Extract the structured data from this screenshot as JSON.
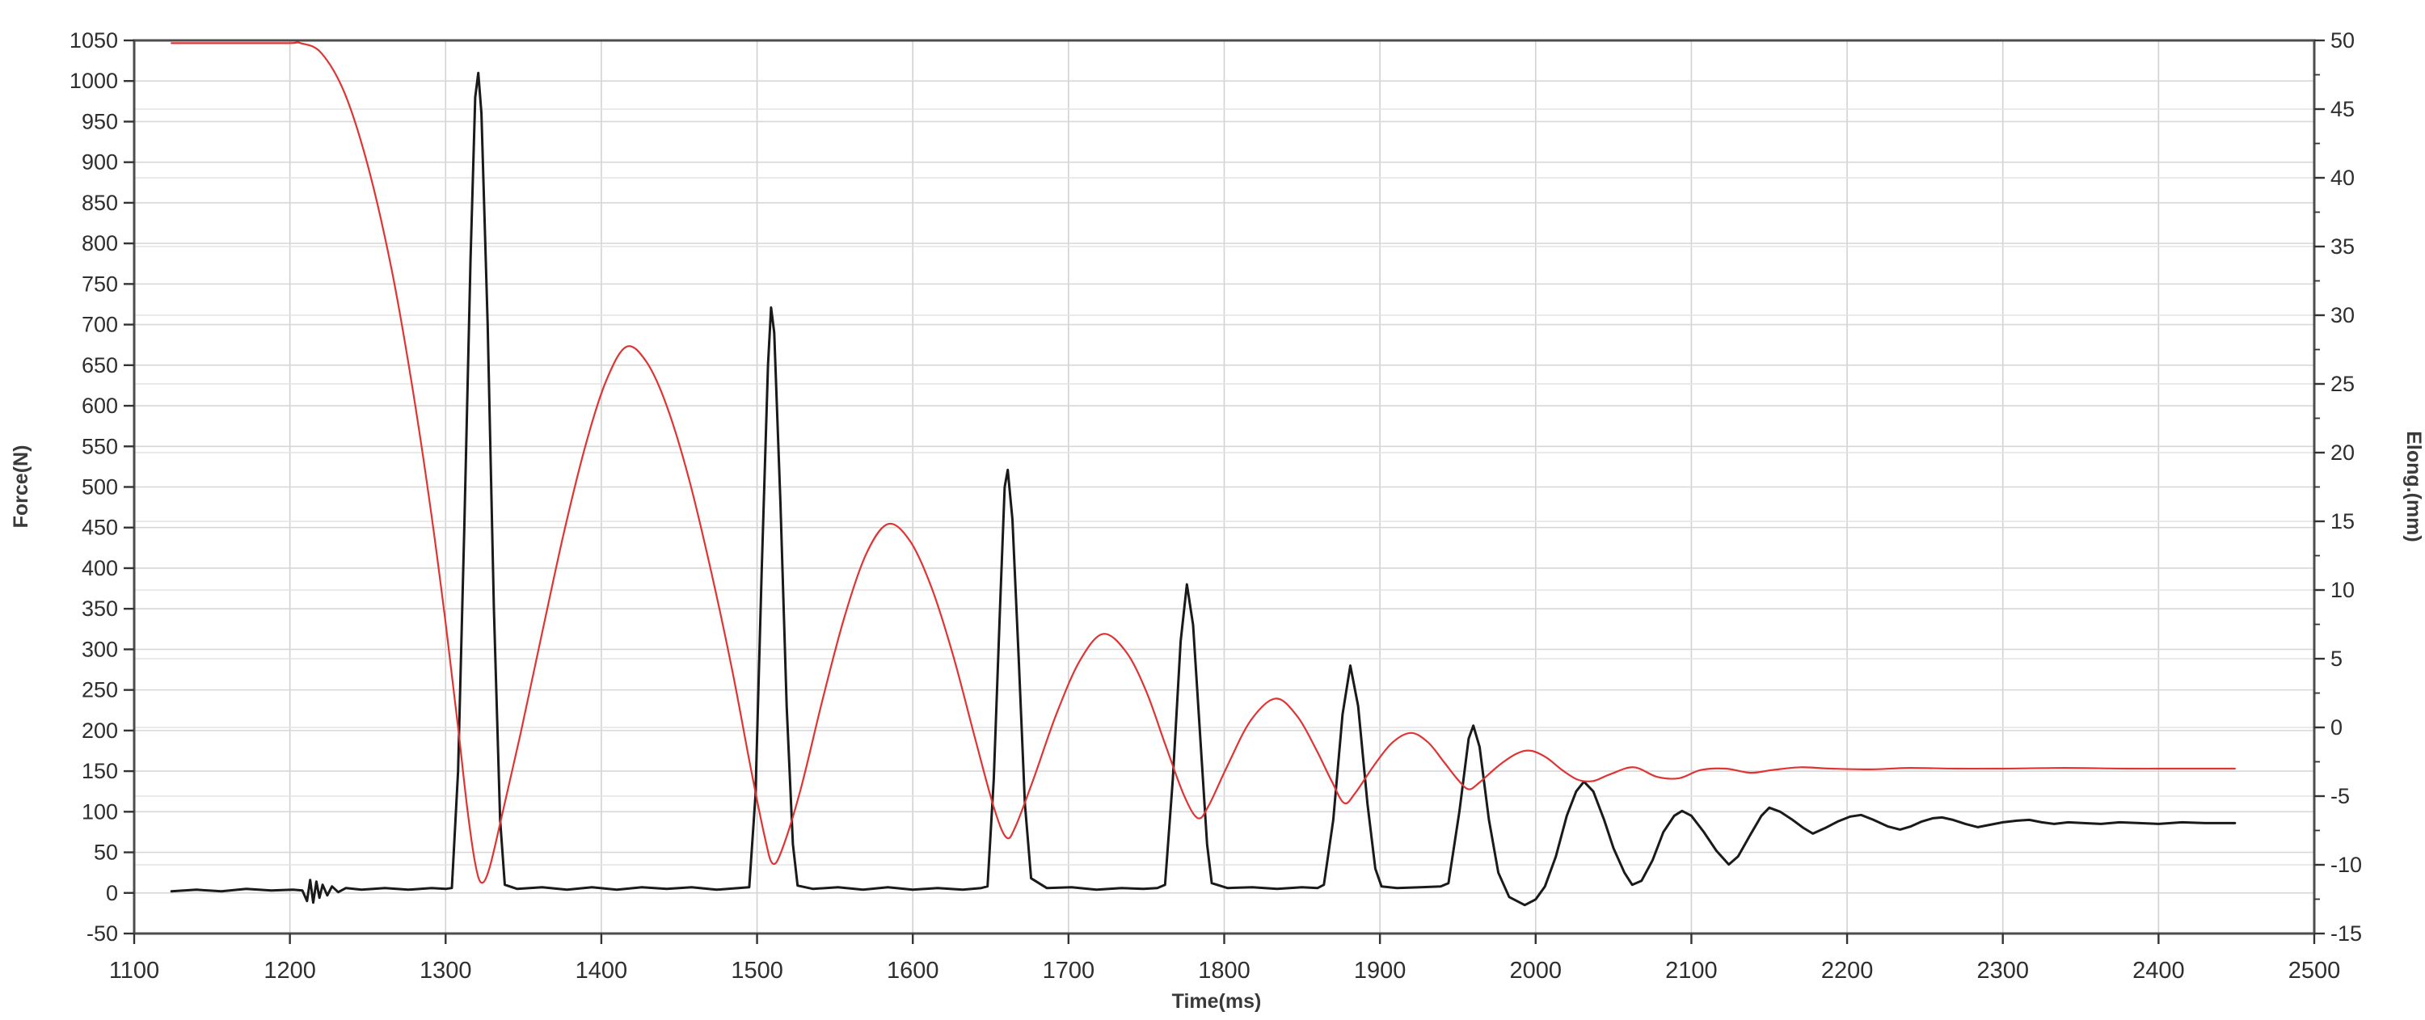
{
  "chart_data": {
    "type": "line",
    "title": "",
    "x_axis": {
      "label": "Time(ms)",
      "min": 1100,
      "max": 2500,
      "tick_step": 100
    },
    "y_left_axis": {
      "label": "Force(N)",
      "min": -50,
      "max": 1050,
      "tick_step": 50
    },
    "y_right_axis": {
      "label": "Elong.(mm)",
      "min": -15,
      "max": 50,
      "tick_step": 5
    },
    "grid": "on",
    "legend_position": "none",
    "style": {
      "background": "#ffffff",
      "frame_color": "#4d4d4d",
      "grid_color_left": "#d7d7d7",
      "grid_color_right": "#e3e3e3",
      "grid_color_vertical": "#d2d2d2",
      "tick_color": "#333333",
      "label_color": "#2e2e2e"
    },
    "series": [
      {
        "name": "Force",
        "axis": "left",
        "color": "#1a1a1a",
        "width": 3,
        "interpolation": "linear",
        "points": [
          [
            1124,
            2
          ],
          [
            1140,
            4
          ],
          [
            1156,
            2
          ],
          [
            1172,
            5
          ],
          [
            1188,
            3
          ],
          [
            1202,
            4
          ],
          [
            1208,
            3
          ],
          [
            1211,
            -10
          ],
          [
            1213,
            16
          ],
          [
            1215,
            -12
          ],
          [
            1217,
            14
          ],
          [
            1219,
            -6
          ],
          [
            1221,
            10
          ],
          [
            1224,
            -3
          ],
          [
            1227,
            8
          ],
          [
            1231,
            1
          ],
          [
            1236,
            6
          ],
          [
            1246,
            4
          ],
          [
            1261,
            6
          ],
          [
            1276,
            4
          ],
          [
            1291,
            6
          ],
          [
            1300,
            5
          ],
          [
            1304,
            6
          ],
          [
            1308,
            150
          ],
          [
            1312,
            450
          ],
          [
            1316,
            780
          ],
          [
            1319,
            980
          ],
          [
            1321,
            1010
          ],
          [
            1323,
            960
          ],
          [
            1327,
            700
          ],
          [
            1331,
            350
          ],
          [
            1335,
            90
          ],
          [
            1338,
            10
          ],
          [
            1346,
            5
          ],
          [
            1362,
            7
          ],
          [
            1378,
            4
          ],
          [
            1394,
            7
          ],
          [
            1410,
            4
          ],
          [
            1426,
            7
          ],
          [
            1442,
            5
          ],
          [
            1458,
            7
          ],
          [
            1474,
            4
          ],
          [
            1488,
            6
          ],
          [
            1495,
            7
          ],
          [
            1499,
            120
          ],
          [
            1503,
            400
          ],
          [
            1507,
            650
          ],
          [
            1509,
            721
          ],
          [
            1511,
            690
          ],
          [
            1515,
            480
          ],
          [
            1519,
            230
          ],
          [
            1523,
            60
          ],
          [
            1526,
            9
          ],
          [
            1536,
            5
          ],
          [
            1552,
            7
          ],
          [
            1568,
            4
          ],
          [
            1584,
            7
          ],
          [
            1600,
            4
          ],
          [
            1616,
            6
          ],
          [
            1632,
            4
          ],
          [
            1644,
            6
          ],
          [
            1648,
            8
          ],
          [
            1652,
            140
          ],
          [
            1656,
            350
          ],
          [
            1659,
            500
          ],
          [
            1661,
            521
          ],
          [
            1664,
            460
          ],
          [
            1668,
            290
          ],
          [
            1672,
            110
          ],
          [
            1676,
            18
          ],
          [
            1686,
            6
          ],
          [
            1702,
            7
          ],
          [
            1718,
            4
          ],
          [
            1734,
            6
          ],
          [
            1748,
            5
          ],
          [
            1757,
            6
          ],
          [
            1762,
            10
          ],
          [
            1767,
            140
          ],
          [
            1772,
            310
          ],
          [
            1776,
            380
          ],
          [
            1780,
            330
          ],
          [
            1785,
            180
          ],
          [
            1789,
            60
          ],
          [
            1792,
            12
          ],
          [
            1802,
            6
          ],
          [
            1818,
            7
          ],
          [
            1834,
            5
          ],
          [
            1850,
            7
          ],
          [
            1860,
            6
          ],
          [
            1864,
            10
          ],
          [
            1870,
            90
          ],
          [
            1876,
            220
          ],
          [
            1881,
            280
          ],
          [
            1886,
            230
          ],
          [
            1892,
            110
          ],
          [
            1897,
            30
          ],
          [
            1901,
            8
          ],
          [
            1911,
            6
          ],
          [
            1926,
            7
          ],
          [
            1939,
            8
          ],
          [
            1944,
            12
          ],
          [
            1951,
            100
          ],
          [
            1957,
            190
          ],
          [
            1960,
            206
          ],
          [
            1964,
            180
          ],
          [
            1970,
            90
          ],
          [
            1976,
            25
          ],
          [
            1983,
            -5
          ],
          [
            1993,
            -15
          ],
          [
            2000,
            -8
          ],
          [
            2006,
            8
          ],
          [
            2013,
            45
          ],
          [
            2020,
            95
          ],
          [
            2026,
            125
          ],
          [
            2031,
            137
          ],
          [
            2037,
            125
          ],
          [
            2044,
            90
          ],
          [
            2050,
            55
          ],
          [
            2057,
            25
          ],
          [
            2062,
            10
          ],
          [
            2068,
            15
          ],
          [
            2075,
            40
          ],
          [
            2082,
            75
          ],
          [
            2089,
            95
          ],
          [
            2094,
            101
          ],
          [
            2100,
            95
          ],
          [
            2108,
            75
          ],
          [
            2116,
            52
          ],
          [
            2124,
            35
          ],
          [
            2130,
            45
          ],
          [
            2138,
            72
          ],
          [
            2145,
            95
          ],
          [
            2150,
            105
          ],
          [
            2157,
            100
          ],
          [
            2165,
            90
          ],
          [
            2172,
            80
          ],
          [
            2178,
            73
          ],
          [
            2186,
            80
          ],
          [
            2194,
            88
          ],
          [
            2202,
            94
          ],
          [
            2209,
            96
          ],
          [
            2217,
            90
          ],
          [
            2226,
            82
          ],
          [
            2234,
            78
          ],
          [
            2241,
            82
          ],
          [
            2248,
            88
          ],
          [
            2255,
            92
          ],
          [
            2261,
            93
          ],
          [
            2268,
            90
          ],
          [
            2276,
            85
          ],
          [
            2284,
            81
          ],
          [
            2292,
            84
          ],
          [
            2300,
            87
          ],
          [
            2309,
            89
          ],
          [
            2317,
            90
          ],
          [
            2325,
            87
          ],
          [
            2333,
            85
          ],
          [
            2342,
            87
          ],
          [
            2352,
            86
          ],
          [
            2363,
            85
          ],
          [
            2375,
            87
          ],
          [
            2388,
            86
          ],
          [
            2400,
            85
          ],
          [
            2415,
            87
          ],
          [
            2430,
            86
          ],
          [
            2449,
            86
          ]
        ]
      },
      {
        "name": "Elongation",
        "axis": "right",
        "color": "#e03434",
        "width": 2.2,
        "interpolation": "smooth",
        "points": [
          [
            1124,
            49.8
          ],
          [
            1150,
            49.8
          ],
          [
            1175,
            49.8
          ],
          [
            1200,
            49.8
          ],
          [
            1207,
            49.8
          ],
          [
            1220,
            49.1
          ],
          [
            1235,
            46.2
          ],
          [
            1250,
            40.9
          ],
          [
            1265,
            33.5
          ],
          [
            1278,
            25.2
          ],
          [
            1290,
            16.2
          ],
          [
            1300,
            7.6
          ],
          [
            1308,
            0.0
          ],
          [
            1314,
            -6.0
          ],
          [
            1319,
            -9.9
          ],
          [
            1323,
            -11.3
          ],
          [
            1328,
            -10.3
          ],
          [
            1336,
            -6.5
          ],
          [
            1348,
            -0.5
          ],
          [
            1362,
            6.9
          ],
          [
            1376,
            14.2
          ],
          [
            1390,
            20.6
          ],
          [
            1403,
            25.2
          ],
          [
            1416,
            27.7
          ],
          [
            1429,
            26.6
          ],
          [
            1442,
            23.4
          ],
          [
            1456,
            18.2
          ],
          [
            1470,
            11.6
          ],
          [
            1484,
            4.2
          ],
          [
            1496,
            -3.0
          ],
          [
            1505,
            -8.0
          ],
          [
            1510,
            -9.9
          ],
          [
            1516,
            -8.9
          ],
          [
            1528,
            -4.5
          ],
          [
            1542,
            2.0
          ],
          [
            1556,
            8.0
          ],
          [
            1570,
            12.6
          ],
          [
            1584,
            14.8
          ],
          [
            1598,
            13.6
          ],
          [
            1612,
            10.2
          ],
          [
            1626,
            5.2
          ],
          [
            1640,
            -0.8
          ],
          [
            1652,
            -5.8
          ],
          [
            1660,
            -8.0
          ],
          [
            1666,
            -7.2
          ],
          [
            1678,
            -3.6
          ],
          [
            1692,
            0.9
          ],
          [
            1707,
            4.8
          ],
          [
            1722,
            6.8
          ],
          [
            1737,
            5.5
          ],
          [
            1750,
            2.6
          ],
          [
            1762,
            -1.2
          ],
          [
            1774,
            -4.9
          ],
          [
            1783,
            -6.6
          ],
          [
            1790,
            -5.7
          ],
          [
            1802,
            -2.8
          ],
          [
            1817,
            0.5
          ],
          [
            1833,
            2.1
          ],
          [
            1847,
            0.8
          ],
          [
            1859,
            -1.6
          ],
          [
            1869,
            -3.9
          ],
          [
            1877,
            -5.5
          ],
          [
            1884,
            -4.8
          ],
          [
            1896,
            -2.8
          ],
          [
            1908,
            -1.1
          ],
          [
            1920,
            -0.4
          ],
          [
            1931,
            -1.1
          ],
          [
            1941,
            -2.5
          ],
          [
            1950,
            -3.8
          ],
          [
            1957,
            -4.5
          ],
          [
            1964,
            -4.0
          ],
          [
            1976,
            -2.8
          ],
          [
            1988,
            -1.9
          ],
          [
            1997,
            -1.7
          ],
          [
            2007,
            -2.2
          ],
          [
            2017,
            -3.1
          ],
          [
            2027,
            -3.8
          ],
          [
            2037,
            -3.9
          ],
          [
            2048,
            -3.4
          ],
          [
            2063,
            -2.9
          ],
          [
            2078,
            -3.6
          ],
          [
            2092,
            -3.7
          ],
          [
            2106,
            -3.1
          ],
          [
            2122,
            -3.0
          ],
          [
            2138,
            -3.3
          ],
          [
            2152,
            -3.1
          ],
          [
            2170,
            -2.9
          ],
          [
            2190,
            -3.0
          ],
          [
            2215,
            -3.05
          ],
          [
            2240,
            -2.95
          ],
          [
            2270,
            -3.0
          ],
          [
            2300,
            -3.0
          ],
          [
            2340,
            -2.95
          ],
          [
            2380,
            -3.0
          ],
          [
            2420,
            -3.0
          ],
          [
            2449,
            -3.0
          ]
        ]
      }
    ]
  }
}
